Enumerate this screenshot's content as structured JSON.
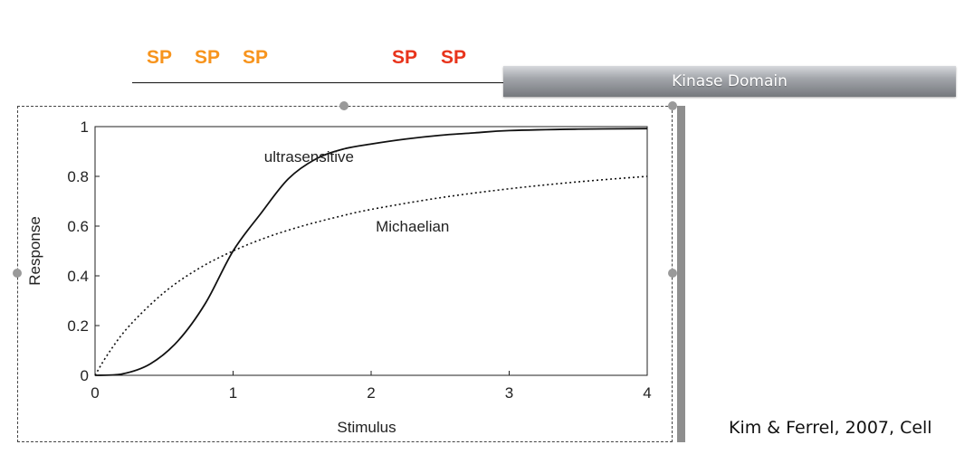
{
  "header": {
    "sites": [
      {
        "label": "SP",
        "color": "#f7941d"
      },
      {
        "label": "SP",
        "color": "#f7941d"
      },
      {
        "label": "SP",
        "color": "#f7941d"
      },
      {
        "label": "SP",
        "color": "#e8341c"
      },
      {
        "label": "SP",
        "color": "#e8341c"
      }
    ],
    "kinase_domain_label": "Kinase Domain"
  },
  "citation": "Kim & Ferrel, 2007, Cell",
  "chart_data": {
    "type": "line",
    "title": "",
    "xlabel": "Stimulus",
    "ylabel": "Response",
    "xlim": [
      0,
      4
    ],
    "ylim": [
      0,
      1
    ],
    "xticks": [
      0,
      1,
      2,
      3,
      4
    ],
    "yticks": [
      0,
      0.2,
      0.4,
      0.6,
      0.8,
      1
    ],
    "ytick_labels": [
      "0",
      "0.2",
      "0.4",
      "0.6",
      "0.8",
      "1"
    ],
    "grid": false,
    "series": [
      {
        "name": "ultrasensitive",
        "style": "solid",
        "color": "#111111",
        "x": [
          0,
          0.2,
          0.4,
          0.6,
          0.8,
          1.0,
          1.2,
          1.4,
          1.6,
          1.8,
          2.0,
          2.25,
          2.5,
          2.75,
          3.0,
          3.5,
          4.0
        ],
        "y": [
          0,
          0.006,
          0.046,
          0.138,
          0.29,
          0.5,
          0.65,
          0.79,
          0.87,
          0.91,
          0.93,
          0.95,
          0.965,
          0.975,
          0.984,
          0.99,
          0.992
        ]
      },
      {
        "name": "Michaelian",
        "style": "dotted",
        "color": "#111111",
        "x": [
          0,
          0.1,
          0.25,
          0.5,
          0.75,
          1.0,
          1.25,
          1.5,
          1.75,
          2.0,
          2.5,
          3.0,
          3.5,
          4.0
        ],
        "y": [
          0,
          0.091,
          0.2,
          0.333,
          0.429,
          0.5,
          0.556,
          0.6,
          0.636,
          0.667,
          0.714,
          0.75,
          0.778,
          0.8
        ]
      }
    ],
    "annotations": [
      {
        "text": "ultrasensitive",
        "x": 1.55,
        "y": 0.88
      },
      {
        "text": "Michaelian",
        "x": 2.3,
        "y": 0.6
      }
    ]
  }
}
